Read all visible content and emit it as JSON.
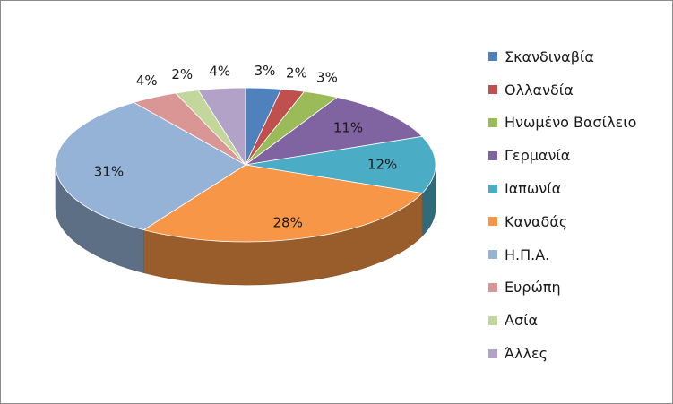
{
  "chart_data": {
    "type": "pie",
    "style": "3d",
    "title": "",
    "legend_position": "right",
    "data_labels": true,
    "slices": [
      {
        "name": "Σκανδιναβία",
        "value": 3,
        "label": "3%",
        "color": "#4f81bd"
      },
      {
        "name": "Ολλανδία",
        "value": 2,
        "label": "2%",
        "color": "#c0504d"
      },
      {
        "name": "Ηνωμένο Βασίλειο",
        "value": 3,
        "label": "3%",
        "color": "#9bbb59"
      },
      {
        "name": "Γερμανία",
        "value": 11,
        "label": "11%",
        "color": "#8064a2"
      },
      {
        "name": "Ιαπωνία",
        "value": 12,
        "label": "12%",
        "color": "#4bacc6"
      },
      {
        "name": "Καναδάς",
        "value": 28,
        "label": "28%",
        "color": "#f79646"
      },
      {
        "name": "Η.Π.Α.",
        "value": 31,
        "label": "31%",
        "color": "#95b3d7"
      },
      {
        "name": "Ευρώπη",
        "value": 4,
        "label": "4%",
        "color": "#d99694"
      },
      {
        "name": "Ασία",
        "value": 2,
        "label": "2%",
        "color": "#c3d69b"
      },
      {
        "name": "Άλλες",
        "value": 4,
        "label": "4%",
        "color": "#b2a2c7"
      }
    ]
  }
}
